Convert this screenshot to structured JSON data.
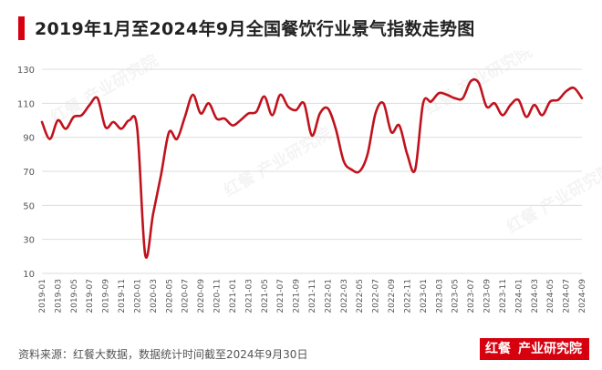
{
  "header": {
    "title": "2019年1月至2024年9月全国餐饮行业景气指数走势图"
  },
  "footer": {
    "source": "资料来源：红餐大数据，数据统计时间截至2024年9月30日",
    "brand_logo": "红餐",
    "brand_name": "产业研究院"
  },
  "watermark": "红餐 产业研究院",
  "colors": {
    "accent": "#d7000f",
    "line": "#c0121c",
    "grid": "#dddddd"
  },
  "chart_data": {
    "type": "line",
    "title": "2019年1月至2024年9月全国餐饮行业景气指数走势图",
    "xlabel": "",
    "ylabel": "",
    "ylim": [
      10,
      130
    ],
    "yticks": [
      10,
      30,
      50,
      70,
      90,
      110,
      130
    ],
    "grid": true,
    "tick_labels": [
      "2019-01",
      "2019-03",
      "2019-05",
      "2019-07",
      "2019-09",
      "2019-11",
      "2020-01",
      "2020-03",
      "2020-05",
      "2020-07",
      "2020-09",
      "2020-11",
      "2021-01",
      "2021-03",
      "2021-05",
      "2021-07",
      "2021-09",
      "2021-11",
      "2022-01",
      "2022-03",
      "2022-05",
      "2022-07",
      "2022-09",
      "2022-11",
      "2023-01",
      "2023-03",
      "2023-05",
      "2023-07",
      "2023-09",
      "2023-11",
      "2024-01",
      "2024-03",
      "2024-05",
      "2024-07",
      "2024-09"
    ],
    "x": [
      "2019-01",
      "2019-02",
      "2019-03",
      "2019-04",
      "2019-05",
      "2019-06",
      "2019-07",
      "2019-08",
      "2019-09",
      "2019-10",
      "2019-11",
      "2019-12",
      "2020-01",
      "2020-02",
      "2020-03",
      "2020-04",
      "2020-05",
      "2020-06",
      "2020-07",
      "2020-08",
      "2020-09",
      "2020-10",
      "2020-11",
      "2020-12",
      "2021-01",
      "2021-02",
      "2021-03",
      "2021-04",
      "2021-05",
      "2021-06",
      "2021-07",
      "2021-08",
      "2021-09",
      "2021-10",
      "2021-11",
      "2021-12",
      "2022-01",
      "2022-02",
      "2022-03",
      "2022-04",
      "2022-05",
      "2022-06",
      "2022-07",
      "2022-08",
      "2022-09",
      "2022-10",
      "2022-11",
      "2022-12",
      "2023-01",
      "2023-02",
      "2023-03",
      "2023-04",
      "2023-05",
      "2023-06",
      "2023-07",
      "2023-08",
      "2023-09",
      "2023-10",
      "2023-11",
      "2023-12",
      "2024-01",
      "2024-02",
      "2024-03",
      "2024-04",
      "2024-05",
      "2024-06",
      "2024-07",
      "2024-08",
      "2024-09"
    ],
    "series": [
      {
        "values": [
          99,
          89,
          100,
          95,
          102,
          103,
          109,
          113,
          96,
          99,
          95,
          100,
          95,
          21,
          45,
          68,
          93,
          89,
          102,
          115,
          104,
          110,
          101,
          101,
          97,
          100,
          104,
          105,
          114,
          103,
          115,
          108,
          106,
          110,
          91,
          104,
          107,
          95,
          76,
          71,
          70,
          80,
          104,
          110,
          93,
          97,
          80,
          71,
          110,
          111,
          116,
          115,
          113,
          113,
          123,
          122,
          108,
          110,
          103,
          109,
          112,
          102,
          109,
          103,
          111,
          112,
          117,
          119,
          113
        ]
      }
    ]
  }
}
